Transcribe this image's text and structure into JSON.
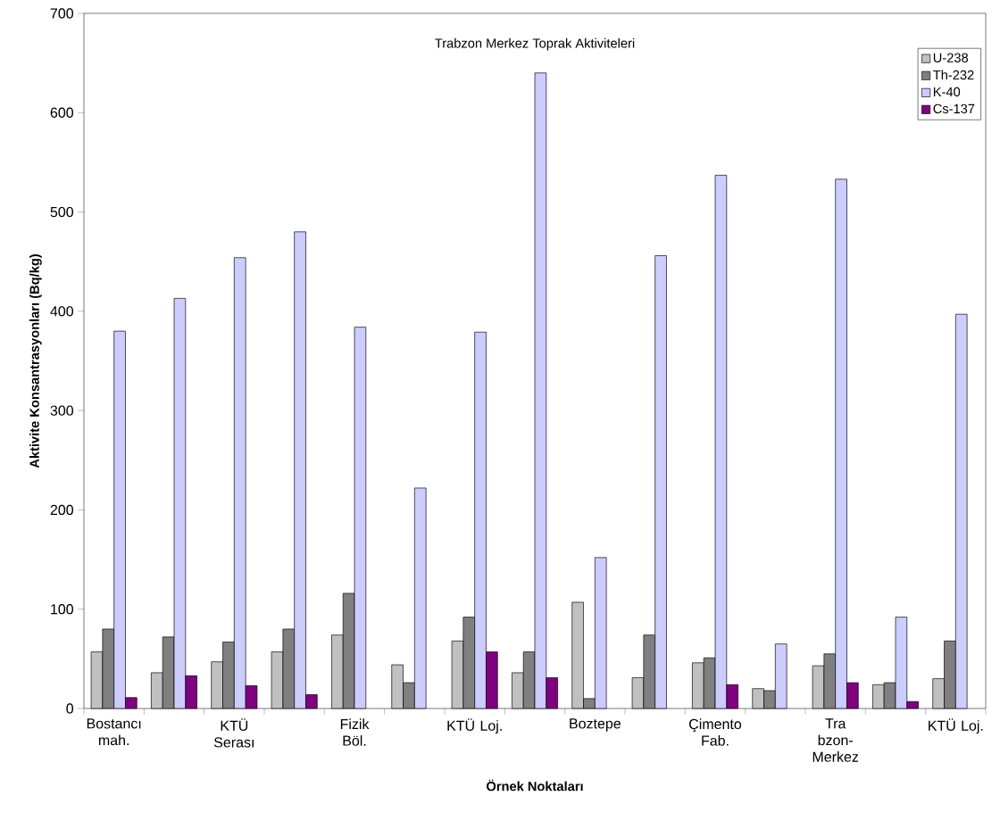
{
  "chart_data": {
    "type": "bar",
    "title": "Trabzon Merkez Toprak Aktiviteleri",
    "xlabel": "Örnek Noktaları",
    "ylabel": "Aktivite Konsantrasyonları (Bq/kg)",
    "categories": [
      "Bostancı mah.",
      null,
      "KTÜ Serası",
      null,
      "Fizik Böl.",
      null,
      "KTÜ Loj.",
      null,
      "Boztepe",
      null,
      "Çimento Fab.",
      null,
      "Tra bzon-Merkez",
      null,
      "KTÜ Loj."
    ],
    "series": [
      {
        "name": "U-238",
        "color": "#c0c0c0",
        "values": [
          57,
          36,
          47,
          57,
          74,
          44,
          68,
          36,
          107,
          31,
          46,
          20,
          43,
          24,
          30
        ]
      },
      {
        "name": "Th-232",
        "color": "#808080",
        "values": [
          80,
          72,
          67,
          80,
          116,
          26,
          92,
          57,
          10,
          74,
          51,
          18,
          55,
          26,
          68
        ]
      },
      {
        "name": "K-40",
        "color": "#ccccff",
        "values": [
          380,
          413,
          454,
          480,
          384,
          222,
          379,
          640,
          152,
          456,
          537,
          65,
          533,
          92,
          397
        ]
      },
      {
        "name": "Cs-137",
        "color": "#800080",
        "values": [
          11,
          33,
          23,
          14,
          null,
          null,
          57,
          31,
          null,
          null,
          24,
          null,
          26,
          7,
          null
        ]
      }
    ],
    "ylim": [
      0,
      700
    ],
    "yticks": [
      0,
      100,
      200,
      300,
      400,
      500,
      600,
      700
    ],
    "grid": false,
    "legend": "top right"
  }
}
